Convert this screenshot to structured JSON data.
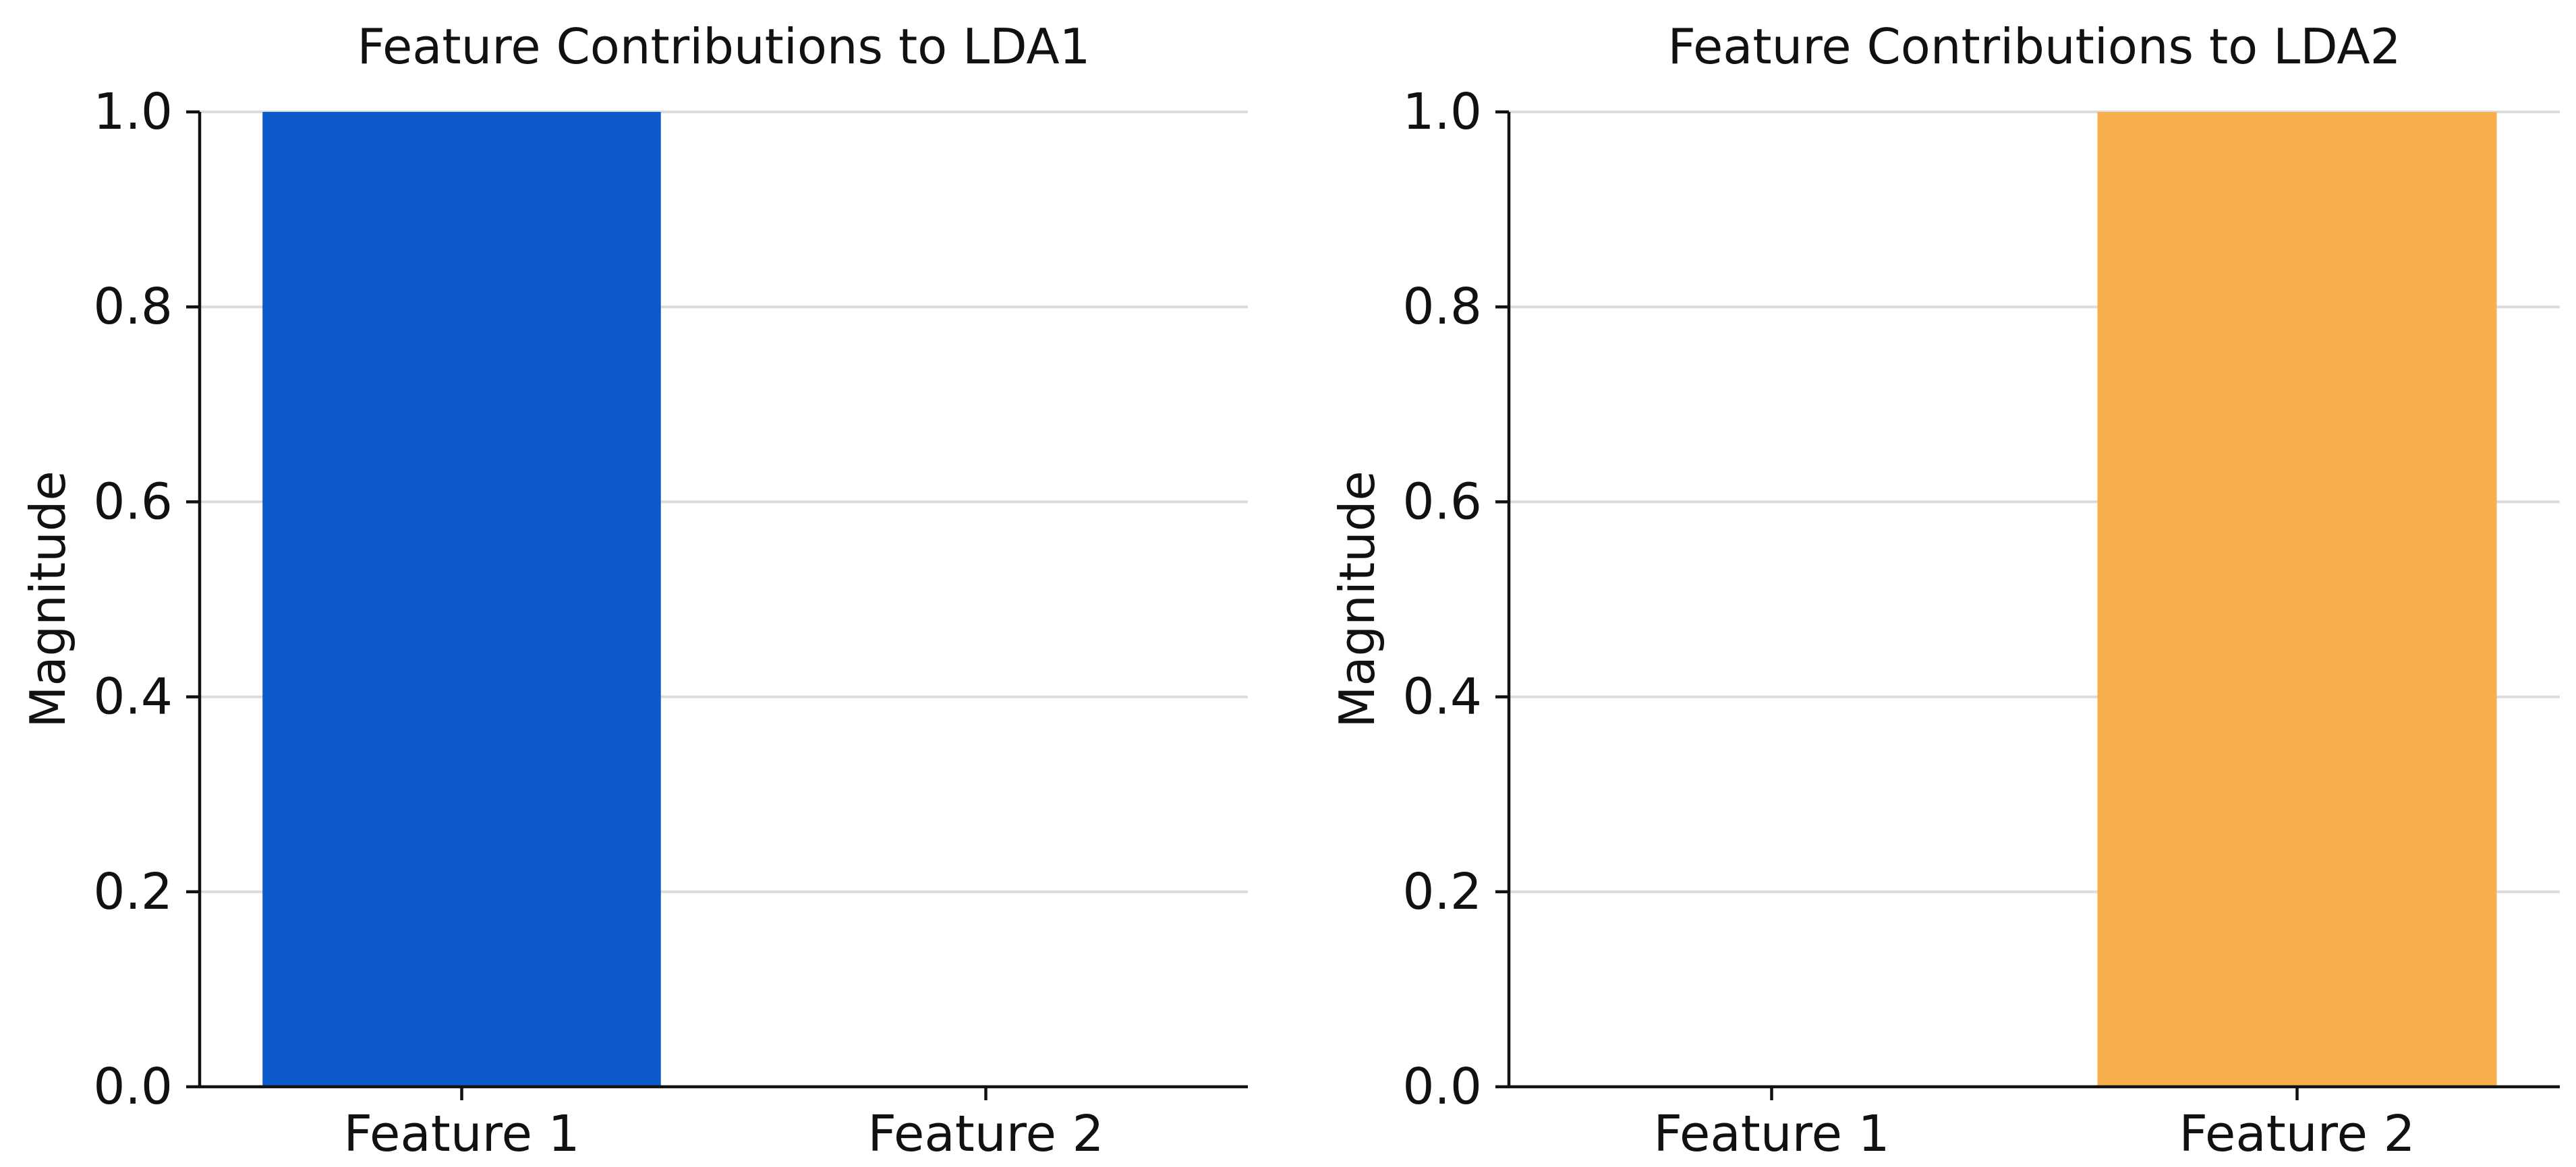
{
  "chart_data": [
    {
      "type": "bar",
      "title": "Feature Contributions to LDA1",
      "xlabel": "",
      "ylabel": "Magnitude",
      "categories": [
        "Feature 1",
        "Feature 2"
      ],
      "values": [
        1.0,
        0.0
      ],
      "ylim": [
        0,
        1.0
      ],
      "yticks": [
        0.0,
        0.2,
        0.4,
        0.6,
        0.8,
        1.0
      ],
      "ytick_labels": [
        "0.0",
        "0.2",
        "0.4",
        "0.6",
        "0.8",
        "1.0"
      ],
      "bar_color": "#0c59c9",
      "grid": "horizontal",
      "legend": "none"
    },
    {
      "type": "bar",
      "title": "Feature Contributions to LDA2",
      "xlabel": "",
      "ylabel": "Magnitude",
      "categories": [
        "Feature 1",
        "Feature 2"
      ],
      "values": [
        0.0,
        1.0
      ],
      "ylim": [
        0,
        1.0
      ],
      "yticks": [
        0.0,
        0.2,
        0.4,
        0.6,
        0.8,
        1.0
      ],
      "ytick_labels": [
        "0.0",
        "0.2",
        "0.4",
        "0.6",
        "0.8",
        "1.0"
      ],
      "bar_color": "#f8b04f",
      "grid": "horizontal",
      "legend": "none"
    }
  ]
}
